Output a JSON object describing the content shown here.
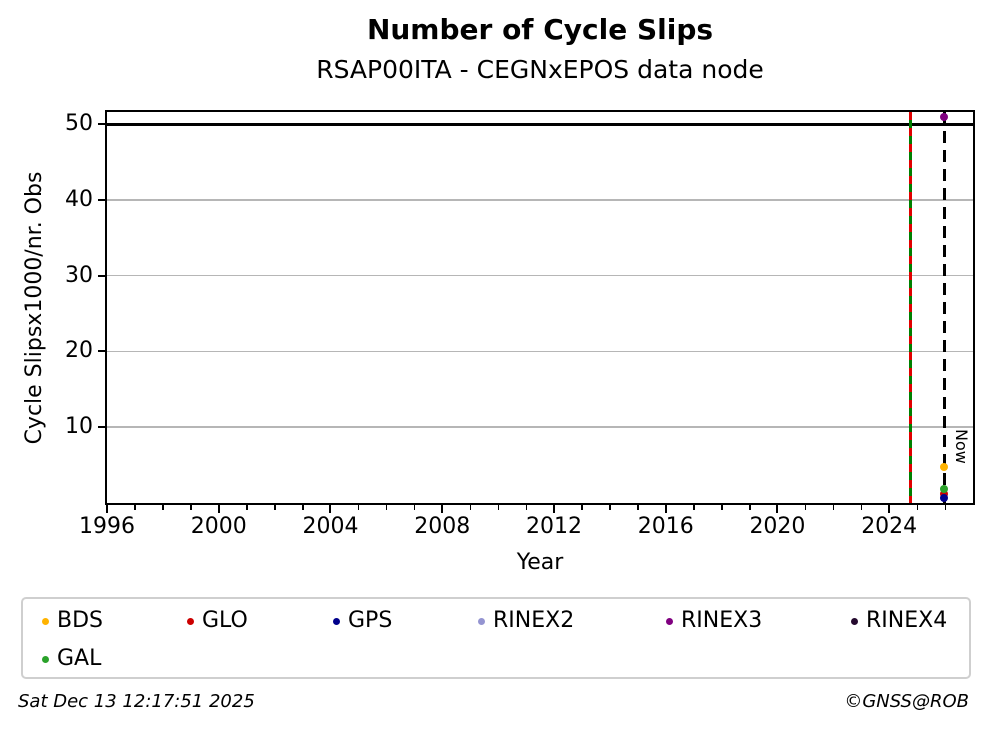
{
  "header": {
    "title": "Number of Cycle Slips",
    "subtitle": "RSAP00ITA - CEGNxEPOS data node"
  },
  "footer": {
    "timestamp": "Sat Dec 13 12:17:51 2025",
    "credit": "©GNSS@ROB"
  },
  "chart_data": {
    "type": "scatter",
    "title": "Number of Cycle Slips",
    "subtitle": "RSAP00ITA - CEGNxEPOS data node",
    "xlabel": "Year",
    "ylabel": "Cycle Slipsx1000/nr. Obs",
    "xlim": [
      1996,
      2027
    ],
    "ylim": [
      0,
      51.6
    ],
    "x_major_ticks": [
      1996,
      2000,
      2004,
      2008,
      2012,
      2016,
      2020,
      2024
    ],
    "x_minor_tick_step": 1,
    "y_ticks": [
      10,
      20,
      30,
      40,
      50
    ],
    "grid": "horizontal-only",
    "grid_color": "#b6b6b6",
    "legend_position": "below",
    "threshold_line": {
      "y": 50,
      "color": "#000000"
    },
    "event_line": {
      "x": 2024.77,
      "style": "dashed-bicolor",
      "colors": [
        "#e00000",
        "#008000"
      ]
    },
    "now_line": {
      "x": 2025.99,
      "label": "Now",
      "color": "#000000",
      "style": "dashed"
    },
    "series": [
      {
        "name": "BDS",
        "color": "#ffb300",
        "points": [
          {
            "x": 2025.96,
            "y": 4.8
          }
        ]
      },
      {
        "name": "GLO",
        "color": "#cc0000",
        "points": [
          {
            "x": 2025.96,
            "y": 1.15
          }
        ]
      },
      {
        "name": "GPS",
        "color": "#00008b",
        "points": [
          {
            "x": 2025.96,
            "y": 0.6
          }
        ]
      },
      {
        "name": "RINEX2",
        "color": "#9494d1",
        "points": []
      },
      {
        "name": "RINEX3",
        "color": "#800080",
        "points": [
          {
            "x": 2025.96,
            "y": 50.9
          }
        ]
      },
      {
        "name": "RINEX4",
        "color": "#250a2e",
        "points": []
      },
      {
        "name": "GAL",
        "color": "#2aa22a",
        "points": [
          {
            "x": 2025.96,
            "y": 1.8
          }
        ]
      }
    ]
  }
}
